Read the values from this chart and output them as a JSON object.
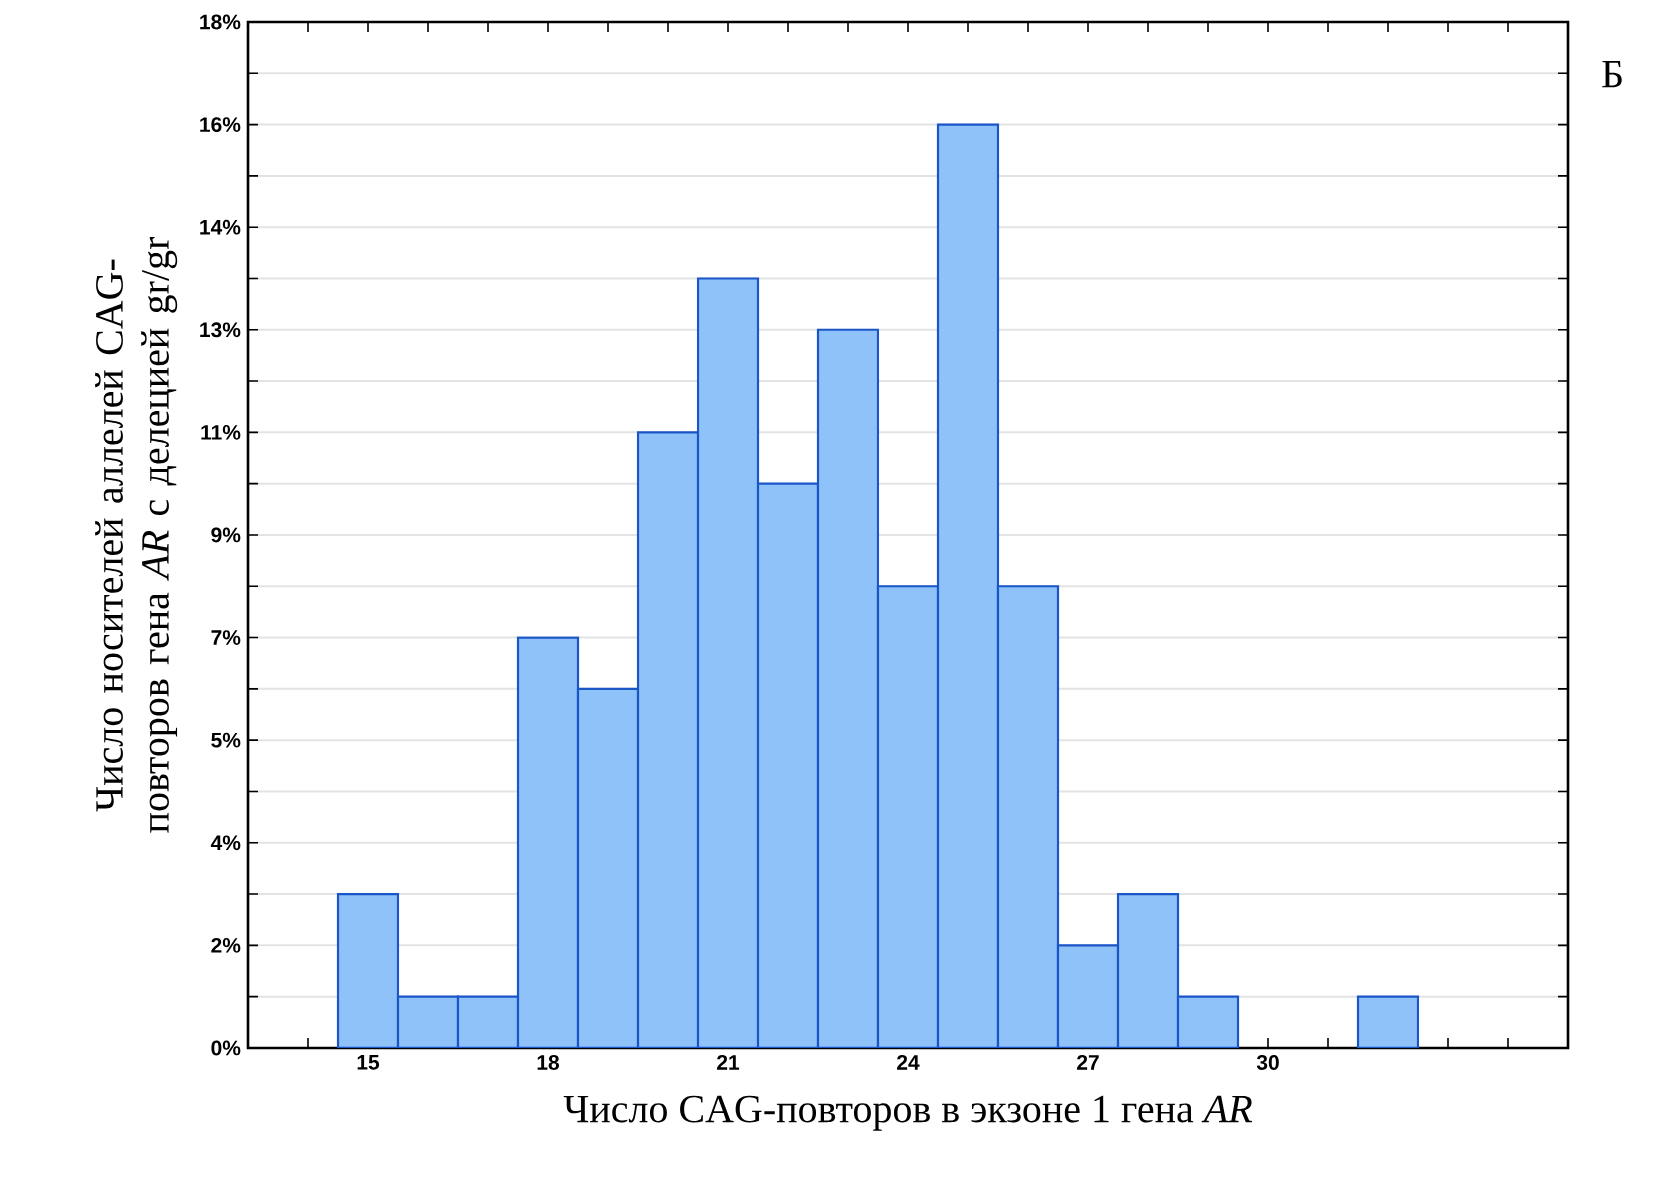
{
  "chart_data": {
    "type": "histogram",
    "xlabel": "Число CAG-повторов в экзоне 1 гена *AR*",
    "ylabel": "Число носителей аллелей CAG-повторов гена *AR* с делецией gr/gr",
    "annotations": [
      "Б"
    ],
    "bins": [
      14.5,
      15.5,
      16.5,
      17.5,
      18.5,
      19.5,
      20.5,
      21.5,
      22.5,
      23.5,
      24.5,
      25.5,
      26.5,
      27.5,
      28.5,
      29.5,
      30.5,
      31.5,
      32.5
    ],
    "values": [
      2.7,
      0.9,
      0.9,
      7.2,
      6.3,
      10.8,
      13.5,
      9.9,
      12.6,
      8.1,
      16.2,
      8.1,
      1.8,
      2.7,
      0.9,
      0,
      0,
      0.9
    ],
    "color": "#8ec2f8",
    "xlim": [
      13,
      35
    ],
    "xticks": [
      {
        "value": 13,
        "label": null
      },
      {
        "value": 14,
        "label": null
      },
      15,
      {
        "value": 16,
        "label": null
      },
      {
        "value": 17,
        "label": null
      },
      18,
      {
        "value": 19,
        "label": null
      },
      {
        "value": 20,
        "label": null
      },
      21,
      {
        "value": 22,
        "label": null
      },
      {
        "value": 23,
        "label": null
      },
      24,
      {
        "value": 25,
        "label": null
      },
      {
        "value": 26,
        "label": null
      },
      27,
      {
        "value": 28,
        "label": null
      },
      {
        "value": 29,
        "label": null
      },
      30,
      {
        "value": 31,
        "label": null
      },
      {
        "value": 32,
        "label": null
      },
      {
        "value": 33,
        "label": null
      },
      {
        "value": 34,
        "label": null
      }
    ],
    "ylim": [
      0,
      18
    ],
    "yticks": [
      {
        "value": 0,
        "label": "0%"
      },
      {
        "value": 1.8,
        "label": "2%"
      },
      {
        "value": 3.6,
        "label": "4%"
      },
      {
        "value": 5.4,
        "label": "5%"
      },
      {
        "value": 7.2,
        "label": "7%"
      },
      {
        "value": 9,
        "label": "9%"
      },
      {
        "value": 10.8,
        "label": "11%"
      },
      {
        "value": 12.6,
        "label": "13%"
      },
      {
        "value": 14.4,
        "label": "14%"
      },
      {
        "value": 16.2,
        "label": "16%"
      },
      {
        "value": 18,
        "label": "18%"
      }
    ],
    "grid": "y"
  }
}
